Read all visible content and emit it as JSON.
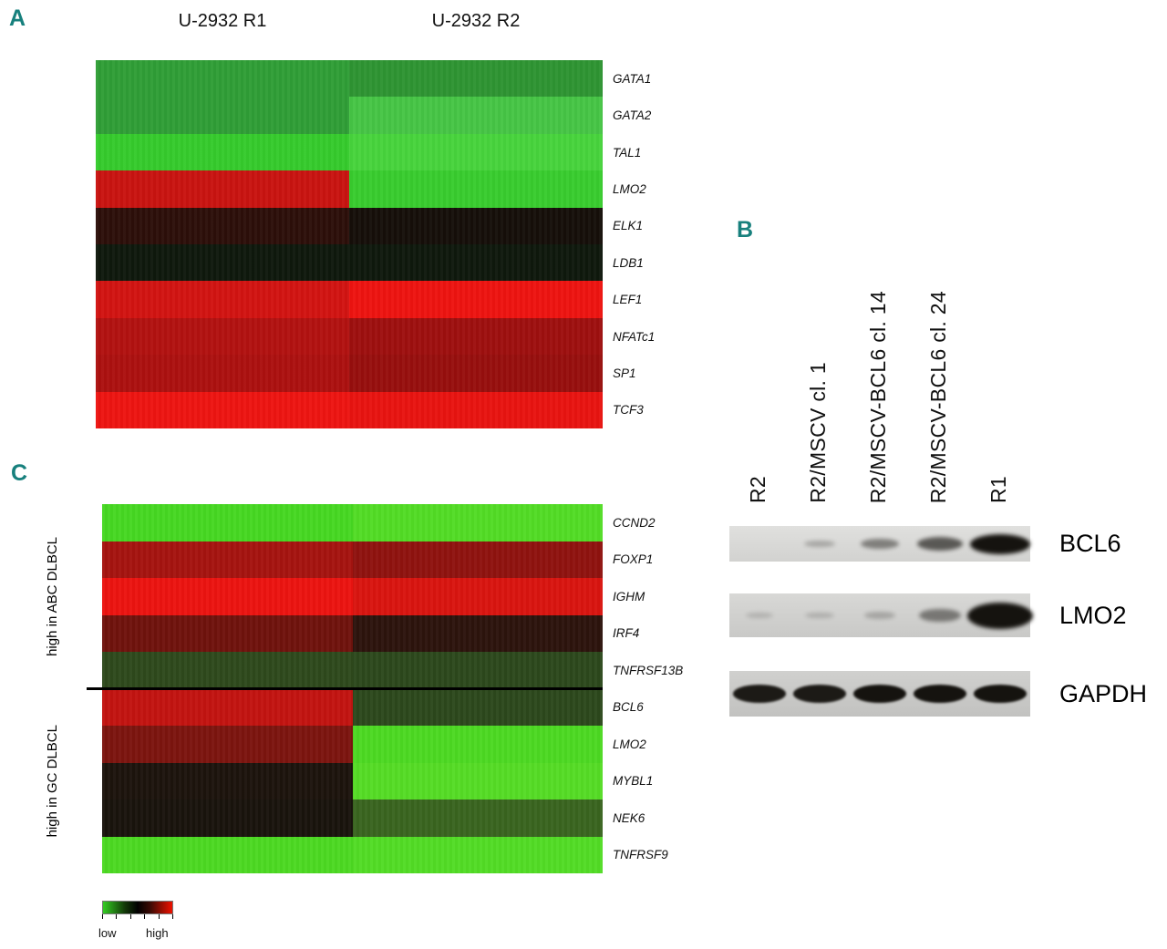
{
  "panels": {
    "a": {
      "label": "A",
      "col_headers": [
        "U-2932 R1",
        "U-2932 R2"
      ]
    },
    "b": {
      "label": "B",
      "lanes": [
        "R2",
        "R2/MSCV cl. 1",
        "R2/MSCV-BCL6 cl. 14",
        "R2/MSCV-BCL6 cl. 24",
        "R1"
      ],
      "blots": [
        {
          "name": "BCL6",
          "band_intensities": [
            0.0,
            0.15,
            0.38,
            0.6,
            1.0
          ]
        },
        {
          "name": "LMO2",
          "band_intensities": [
            0.05,
            0.07,
            0.12,
            0.4,
            1.0
          ]
        },
        {
          "name": "GAPDH",
          "band_intensities": [
            0.95,
            0.95,
            1.0,
            1.0,
            1.0
          ]
        }
      ]
    },
    "c": {
      "label": "C",
      "group_labels": [
        "high in ABC DLBCL",
        "high in GC DLBCL"
      ]
    }
  },
  "chart_data": [
    {
      "type": "heatmap",
      "title": "Panel A: transcription factor expression in U-2932 subclones",
      "columns": [
        "U-2932 R1",
        "U-2932 R2"
      ],
      "rows": [
        "GATA1",
        "GATA2",
        "TAL1",
        "LMO2",
        "ELK1",
        "LDB1",
        "LEF1",
        "NFATc1",
        "SP1",
        "TCF3"
      ],
      "values": [
        [
          -0.6,
          -0.6
        ],
        [
          -0.6,
          -0.75
        ],
        [
          -0.85,
          -0.85
        ],
        [
          0.85,
          -0.85
        ],
        [
          0.15,
          0.05
        ],
        [
          -0.08,
          -0.08
        ],
        [
          0.9,
          0.95
        ],
        [
          0.75,
          0.68
        ],
        [
          0.72,
          0.65
        ],
        [
          0.95,
          0.93
        ]
      ],
      "cell_colors": [
        [
          "#2f9e36",
          "#2e9432"
        ],
        [
          "#2f9e36",
          "#46c545"
        ],
        [
          "#35cb2c",
          "#47d43c"
        ],
        [
          "#c91310",
          "#38cc2e"
        ],
        [
          "#2c0e09",
          "#150e09"
        ],
        [
          "#0e180c",
          "#0e180c"
        ],
        [
          "#d21311",
          "#ee1310"
        ],
        [
          "#b21110",
          "#9e0f0e"
        ],
        [
          "#ac100f",
          "#970e0d"
        ],
        [
          "#ed1411",
          "#e81310"
        ]
      ],
      "scale": {
        "low_color": "#33cc22",
        "mid_color": "#000000",
        "high_color": "#ee1100",
        "low_label": "low",
        "high_label": "high"
      }
    },
    {
      "type": "heatmap",
      "title": "Panel C: ABC/GC DLBCL classifier genes",
      "columns": [
        "U-2932 R1",
        "U-2932 R2"
      ],
      "rows": [
        "CCND2",
        "FOXP1",
        "IGHM",
        "IRF4",
        "TNFRSF13B",
        "BCL6",
        "LMO2",
        "MYBL1",
        "NEK6",
        "TNFRSF9"
      ],
      "row_groups": [
        "high in ABC DLBCL",
        "high in ABC DLBCL",
        "high in ABC DLBCL",
        "high in ABC DLBCL",
        "high in ABC DLBCL",
        "high in GC DLBCL",
        "high in GC DLBCL",
        "high in GC DLBCL",
        "high in GC DLBCL",
        "high in GC DLBCL"
      ],
      "values": [
        [
          -0.9,
          -0.9
        ],
        [
          0.7,
          0.62
        ],
        [
          0.95,
          0.88
        ],
        [
          0.45,
          0.12
        ],
        [
          -0.3,
          -0.3
        ],
        [
          0.8,
          -0.3
        ],
        [
          0.5,
          -0.9
        ],
        [
          0.08,
          -0.9
        ],
        [
          0.06,
          -0.4
        ],
        [
          -0.9,
          -0.9
        ]
      ],
      "cell_colors": [
        [
          "#46d822",
          "#52dc25"
        ],
        [
          "#a5130f",
          "#8f120e"
        ],
        [
          "#ec1310",
          "#d9140f"
        ],
        [
          "#6f120c",
          "#2c130c"
        ],
        [
          "#2e491c",
          "#2c481c"
        ],
        [
          "#c21310",
          "#2c481c"
        ],
        [
          "#7c140e",
          "#4cd922"
        ],
        [
          "#1c130c",
          "#55dc25"
        ],
        [
          "#19130c",
          "#39641f"
        ],
        [
          "#4cd922",
          "#52dc25"
        ]
      ],
      "scale": {
        "low_color": "#33cc22",
        "mid_color": "#000000",
        "high_color": "#ee1100",
        "low_label": "low",
        "high_label": "high"
      }
    }
  ]
}
